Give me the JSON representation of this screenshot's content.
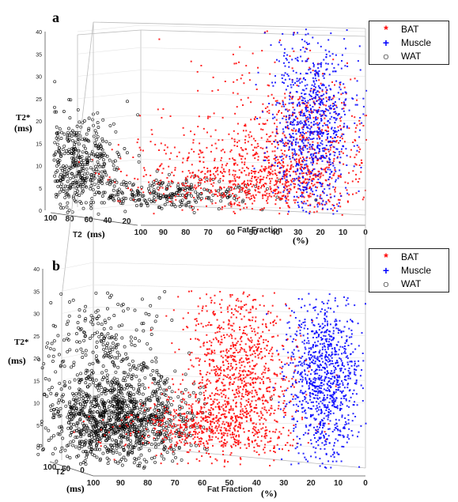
{
  "figure": {
    "panels": [
      {
        "letter": "a",
        "legend": [
          {
            "symbol": "*",
            "label": "BAT",
            "color": "#ff0000"
          },
          {
            "symbol": "+",
            "label": "Muscle",
            "color": "#0000ff"
          },
          {
            "symbol": "○",
            "label": "WAT",
            "color": "#000000"
          }
        ],
        "z_label": "T2*",
        "z_unit": "(ms)",
        "x_label": "Fat Fraction",
        "x_unit": "(%)",
        "y_label": "T2",
        "y_unit": "(ms)"
      },
      {
        "letter": "b",
        "legend": [
          {
            "symbol": "*",
            "label": "BAT",
            "color": "#ff0000"
          },
          {
            "symbol": "+",
            "label": "Muscle",
            "color": "#0000ff"
          },
          {
            "symbol": "○",
            "label": "WAT",
            "color": "#000000"
          }
        ],
        "z_label": "T2*",
        "z_unit": "(ms)",
        "x_label": "Fat Fraction",
        "x_unit": "(%)",
        "y_label": "T2",
        "y_unit": "(ms)"
      }
    ]
  },
  "chart_data": [
    {
      "type": "scatter",
      "title": "",
      "xlabel": "Fat Fraction (%)",
      "ylabel": "T2 (ms)",
      "zlabel": "T2* (ms)",
      "x_ticks": [
        100,
        90,
        80,
        70,
        60,
        50,
        40,
        30,
        20,
        10,
        0
      ],
      "y_ticks": [
        100,
        80,
        60,
        40,
        20
      ],
      "z_ticks": [
        0,
        5,
        10,
        15,
        20,
        25,
        30,
        35,
        40
      ],
      "xlim": [
        100,
        0
      ],
      "ylim": [
        100,
        20
      ],
      "zlim": [
        0,
        40
      ],
      "grid": true,
      "legend_position": "top-right",
      "series": [
        {
          "name": "BAT",
          "marker": "*",
          "color": "#ff0000",
          "fat_fraction_range": [
            15,
            95
          ],
          "t2star_range": [
            2,
            35
          ],
          "approx_center_fat_fraction": 45,
          "approx_center_t2star": 6
        },
        {
          "name": "Muscle",
          "marker": "+",
          "color": "#0000ff",
          "fat_fraction_range": [
            3,
            40
          ],
          "t2star_range": [
            3,
            40
          ],
          "approx_center_fat_fraction": 20,
          "approx_center_t2star": 15
        },
        {
          "name": "WAT",
          "marker": "o",
          "color": "#000000",
          "fat_fraction_range": [
            45,
            100
          ],
          "t2star_range": [
            2,
            28
          ],
          "approx_center_fat_fraction": 90,
          "approx_center_t2star": 8
        }
      ]
    },
    {
      "type": "scatter",
      "title": "",
      "xlabel": "Fat Fraction (%)",
      "ylabel": "T2 (ms)",
      "zlabel": "T2* (ms)",
      "x_ticks": [
        100,
        90,
        80,
        70,
        60,
        50,
        40,
        30,
        20,
        10,
        0
      ],
      "y_ticks": [
        100,
        50,
        0
      ],
      "z_ticks": [
        0,
        5,
        10,
        15,
        20,
        25,
        30,
        35,
        40
      ],
      "xlim": [
        100,
        0
      ],
      "ylim": [
        100,
        0
      ],
      "zlim": [
        0,
        40
      ],
      "grid": true,
      "legend_position": "top-right",
      "series": [
        {
          "name": "BAT",
          "marker": "*",
          "color": "#ff0000",
          "fat_fraction_range": [
            15,
            65
          ],
          "t2star_range": [
            1,
            38
          ],
          "approx_center_fat_fraction": 42,
          "approx_center_t2star": 7
        },
        {
          "name": "Muscle",
          "marker": "+",
          "color": "#0000ff",
          "fat_fraction_range": [
            2,
            30
          ],
          "t2star_range": [
            1,
            36
          ],
          "approx_center_fat_fraction": 10,
          "approx_center_t2star": 10
        },
        {
          "name": "WAT",
          "marker": "o",
          "color": "#000000",
          "fat_fraction_range": [
            55,
            100
          ],
          "t2star_range": [
            1,
            35
          ],
          "approx_center_fat_fraction": 85,
          "approx_center_t2star": 5
        }
      ]
    }
  ]
}
